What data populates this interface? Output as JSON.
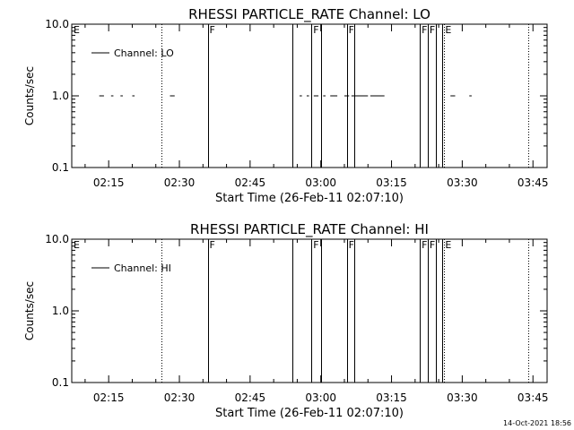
{
  "footer_date": "14-Oct-2021 18:56",
  "chart_data": [
    {
      "type": "line",
      "title": "RHESSI PARTICLE_RATE Channel: LO",
      "xlabel": "Start Time (26-Feb-11 02:07:10)",
      "ylabel": "Counts/sec",
      "yscale": "log",
      "ylim": [
        0.1,
        10.0
      ],
      "yticks": [
        {
          "value": 0.1,
          "label": "0.1"
        },
        {
          "value": 1.0,
          "label": "1.0"
        },
        {
          "value": 10.0,
          "label": "10.0"
        }
      ],
      "xlim": [
        "02:07:10",
        "03:48:00"
      ],
      "xticks": [
        "02:15",
        "02:30",
        "02:45",
        "03:00",
        "03:15",
        "03:30",
        "03:45"
      ],
      "legend": {
        "label": "Channel: LO",
        "placement": "top-left"
      },
      "series": [
        {
          "name": "Channel: LO",
          "segments": [
            [
              "02:13:00",
              "02:14:00"
            ],
            [
              "02:15:30",
              "02:16:00"
            ],
            [
              "02:17:30",
              "02:18:00"
            ],
            [
              "02:20:00",
              "02:20:30"
            ],
            [
              "02:28:00",
              "02:29:00"
            ],
            [
              "02:55:30",
              "02:56:00"
            ],
            [
              "02:57:00",
              "02:57:30"
            ],
            [
              "02:58:30",
              "02:59:30"
            ],
            [
              "03:00:30",
              "03:01:00"
            ],
            [
              "03:02:00",
              "03:03:30"
            ],
            [
              "03:05:00",
              "03:06:00"
            ],
            [
              "03:06:30",
              "03:10:00"
            ],
            [
              "03:10:30",
              "03:13:30"
            ],
            [
              "03:27:30",
              "03:28:30"
            ],
            [
              "03:31:30",
              "03:32:00"
            ]
          ]
        }
      ],
      "vlines_solid": [
        "02:36:00",
        "02:54:00",
        "02:58:00",
        "03:00:00",
        "03:05:30",
        "03:07:10",
        "03:21:00",
        "03:22:40",
        "03:24:20",
        "03:25:40"
      ],
      "vlines_dotted": [
        "02:26:10",
        "03:26:10",
        "03:44:00"
      ],
      "flags": [
        {
          "text": "E",
          "x": "02:07:10"
        },
        {
          "text": "F",
          "x": "02:36:00"
        },
        {
          "text": "F",
          "x": "02:58:00"
        },
        {
          "text": "F",
          "x": "03:05:30"
        },
        {
          "text": "F",
          "x": "03:21:00"
        },
        {
          "text": "F",
          "x": "03:22:40"
        },
        {
          "text": "E",
          "x": "03:26:00"
        }
      ]
    },
    {
      "type": "line",
      "title": "RHESSI PARTICLE_RATE Channel: HI",
      "xlabel": "Start Time (26-Feb-11 02:07:10)",
      "ylabel": "Counts/sec",
      "yscale": "log",
      "ylim": [
        0.1,
        10.0
      ],
      "yticks": [
        {
          "value": 0.1,
          "label": "0.1"
        },
        {
          "value": 1.0,
          "label": "1.0"
        },
        {
          "value": 10.0,
          "label": "10.0"
        }
      ],
      "xlim": [
        "02:07:10",
        "03:48:00"
      ],
      "xticks": [
        "02:15",
        "02:30",
        "02:45",
        "03:00",
        "03:15",
        "03:30",
        "03:45"
      ],
      "legend": {
        "label": "Channel: HI",
        "placement": "top-left"
      },
      "series": [
        {
          "name": "Channel: HI",
          "segments": []
        }
      ],
      "vlines_solid": [
        "02:36:00",
        "02:54:00",
        "02:58:00",
        "03:00:00",
        "03:05:30",
        "03:07:10",
        "03:21:00",
        "03:22:40",
        "03:24:20",
        "03:25:40"
      ],
      "vlines_dotted": [
        "02:26:10",
        "03:26:10",
        "03:44:00"
      ],
      "flags": [
        {
          "text": "E",
          "x": "02:07:10"
        },
        {
          "text": "F",
          "x": "02:36:00"
        },
        {
          "text": "F",
          "x": "02:58:00"
        },
        {
          "text": "F",
          "x": "03:05:30"
        },
        {
          "text": "F",
          "x": "03:21:00"
        },
        {
          "text": "F",
          "x": "03:22:40"
        },
        {
          "text": "E",
          "x": "03:26:00"
        }
      ]
    }
  ]
}
